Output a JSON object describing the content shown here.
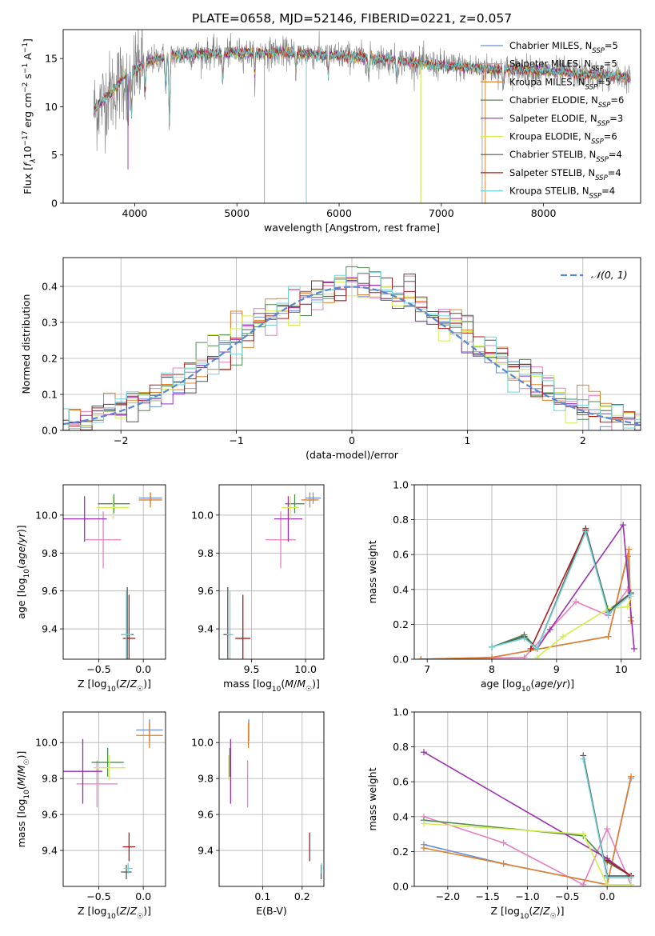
{
  "figure_title": "PLATE=0658, MJD=52146, FIBERID=0221, z=0.057",
  "colors": {
    "Chabrier MILES": "#6a8fd8",
    "Salpeter MILES": "#e77fc0",
    "Kroupa MILES": "#e0802a",
    "Chabrier ELODIE": "#4f8a4f",
    "Salpeter ELODIE": "#9a2fb0",
    "Kroupa ELODIE": "#d3ee4d",
    "Chabrier STELIB": "#555555",
    "Salpeter STELIB": "#b01a1a",
    "Kroupa STELIB": "#6fd3d8"
  },
  "chart_data": [
    {
      "type": "line",
      "id": "spectrum",
      "xlabel": "wavelength [Angstrom, rest frame]",
      "ylabel": "Flux [f_λ10^-17 erg cm^-2 s^-1 A^-1]",
      "xlim": [
        3300,
        8950
      ],
      "ylim": [
        0,
        18
      ],
      "xticks": [
        4000,
        5000,
        6000,
        7000,
        8000
      ],
      "yticks": [
        0,
        5,
        10,
        15
      ],
      "grid": false,
      "legend_position": "upper right",
      "legend": [
        {
          "name": "Chabrier MILES",
          "label": "Chabrier MILES, N_SSP=5"
        },
        {
          "name": "Salpeter MILES",
          "label": "Salpeter MILES, N_SSP=5"
        },
        {
          "name": "Kroupa MILES",
          "label": "Kroupa MILES, N_SSP=5"
        },
        {
          "name": "Chabrier ELODIE",
          "label": "Chabrier ELODIE, N_SSP=6"
        },
        {
          "name": "Salpeter ELODIE",
          "label": "Salpeter ELODIE, N_SSP=3"
        },
        {
          "name": "Kroupa ELODIE",
          "label": "Kroupa ELODIE, N_SSP=6"
        },
        {
          "name": "Chabrier STELIB",
          "label": "Chabrier STELIB, N_SSP=4"
        },
        {
          "name": "Salpeter STELIB",
          "label": "Salpeter STELIB, N_SSP=4"
        },
        {
          "name": "Kroupa STELIB",
          "label": "Kroupa STELIB, N_SSP=4"
        }
      ],
      "observed": {
        "x_range": [
          3600,
          8850
        ],
        "continuum": [
          [
            3600,
            9.6
          ],
          [
            3700,
            10.8
          ],
          [
            3800,
            11.8
          ],
          [
            3900,
            13.2
          ],
          [
            4000,
            13.8
          ],
          [
            4100,
            14.6
          ],
          [
            4300,
            15.2
          ],
          [
            4500,
            15.4
          ],
          [
            5000,
            15.6
          ],
          [
            5500,
            15.6
          ],
          [
            6000,
            15.3
          ],
          [
            6500,
            14.9
          ],
          [
            7000,
            14.3
          ],
          [
            7500,
            13.9
          ],
          [
            8000,
            13.7
          ],
          [
            8500,
            13.3
          ],
          [
            8850,
            13.0
          ]
        ]
      },
      "absorption_features": [
        [
          3934,
          5.5
        ],
        [
          3969,
          4.5
        ],
        [
          4102,
          3.0
        ],
        [
          4304,
          3.5
        ],
        [
          4340,
          7.0
        ],
        [
          4861,
          3.0
        ],
        [
          5175,
          2.0
        ],
        [
          5270,
          15.0
        ],
        [
          5577,
          1.5
        ],
        [
          5680,
          15.5
        ],
        [
          5893,
          2.0
        ],
        [
          6290,
          2.0
        ],
        [
          6563,
          2.0
        ],
        [
          6800,
          14.0
        ],
        [
          7400,
          14.5
        ],
        [
          7605,
          1.5
        ]
      ]
    },
    {
      "type": "histogram",
      "id": "residuals",
      "xlabel": "(data-model)/error",
      "ylabel": "Normed distribution",
      "xlim": [
        -2.5,
        2.5
      ],
      "ylim": [
        0,
        0.48
      ],
      "xticks": [
        -2,
        -1,
        0,
        1,
        2
      ],
      "yticks": [
        0.0,
        0.1,
        0.2,
        0.3,
        0.4
      ],
      "grid": true,
      "bin_width": 0.1,
      "legend": [
        {
          "label": "𝒩(0, 1)",
          "style": "dashed",
          "color": "#5b85d6"
        }
      ]
    },
    {
      "type": "errorbar",
      "id": "age_vs_Z",
      "xlabel": "Z [log10(Z/Z☉)]",
      "ylabel": "age  [log10(age/yr)]",
      "xlim": [
        -0.9,
        0.25
      ],
      "ylim": [
        9.24,
        10.16
      ],
      "xticks": [
        -0.5,
        0.0
      ],
      "yticks": [
        9.4,
        9.6,
        9.8,
        10.0
      ],
      "grid": true,
      "points": [
        {
          "series": "Chabrier MILES",
          "x": 0.08,
          "y": 10.09,
          "xerr": 0.13,
          "yerr": 0.03
        },
        {
          "series": "Salpeter MILES",
          "x": -0.45,
          "y": 9.87,
          "xerr": 0.2,
          "yerr": 0.15
        },
        {
          "series": "Kroupa MILES",
          "x": 0.08,
          "y": 10.08,
          "xerr": 0.13,
          "yerr": 0.04
        },
        {
          "series": "Chabrier ELODIE",
          "x": -0.33,
          "y": 10.06,
          "xerr": 0.18,
          "yerr": 0.05
        },
        {
          "series": "Salpeter ELODIE",
          "x": -0.66,
          "y": 9.98,
          "xerr": 0.25,
          "yerr": 0.12
        },
        {
          "series": "Kroupa ELODIE",
          "x": -0.34,
          "y": 10.04,
          "xerr": 0.18,
          "yerr": 0.06
        },
        {
          "series": "Chabrier STELIB",
          "x": -0.18,
          "y": 9.37,
          "xerr": 0.07,
          "yerr": 0.25
        },
        {
          "series": "Salpeter STELIB",
          "x": -0.16,
          "y": 9.35,
          "xerr": 0.07,
          "yerr": 0.23
        },
        {
          "series": "Kroupa STELIB",
          "x": -0.19,
          "y": 9.37,
          "xerr": 0.06,
          "yerr": 0.23
        }
      ]
    },
    {
      "type": "errorbar",
      "id": "age_vs_mass",
      "xlabel": "mass [log10(M/M☉)]",
      "ylabel": "",
      "xlim": [
        9.2,
        10.17
      ],
      "ylim": [
        9.24,
        10.16
      ],
      "xticks": [
        9.5,
        10.0
      ],
      "yticks": [
        9.4,
        9.6,
        9.8,
        10.0
      ],
      "grid": true,
      "points": [
        {
          "series": "Chabrier MILES",
          "x": 10.07,
          "y": 10.09,
          "xerr": 0.07,
          "yerr": 0.03
        },
        {
          "series": "Salpeter MILES",
          "x": 9.77,
          "y": 9.87,
          "xerr": 0.14,
          "yerr": 0.15
        },
        {
          "series": "Kroupa MILES",
          "x": 10.04,
          "y": 10.08,
          "xerr": 0.08,
          "yerr": 0.04
        },
        {
          "series": "Chabrier ELODIE",
          "x": 9.9,
          "y": 10.06,
          "xerr": 0.09,
          "yerr": 0.05
        },
        {
          "series": "Salpeter ELODIE",
          "x": 9.84,
          "y": 9.98,
          "xerr": 0.13,
          "yerr": 0.12
        },
        {
          "series": "Kroupa ELODIE",
          "x": 9.86,
          "y": 10.04,
          "xerr": 0.08,
          "yerr": 0.06
        },
        {
          "series": "Chabrier STELIB",
          "x": 9.28,
          "y": 9.37,
          "xerr": 0.04,
          "yerr": 0.25
        },
        {
          "series": "Salpeter STELIB",
          "x": 9.42,
          "y": 9.35,
          "xerr": 0.07,
          "yerr": 0.23
        },
        {
          "series": "Kroupa STELIB",
          "x": 9.3,
          "y": 9.37,
          "xerr": 0.03,
          "yerr": 0.23
        }
      ]
    },
    {
      "type": "line",
      "id": "weight_vs_age",
      "xlabel": "age  [log10(age/yr)]",
      "ylabel": "mass weight",
      "xlim": [
        6.8,
        10.3
      ],
      "ylim": [
        0,
        1.0
      ],
      "xticks": [
        7,
        8,
        9,
        10
      ],
      "yticks": [
        0.0,
        0.2,
        0.4,
        0.6,
        0.8,
        1.0
      ],
      "grid": true,
      "series": [
        {
          "name": "Chabrier MILES",
          "x": [
            6.9,
            8.0,
            9.8,
            10.1,
            10.15
          ],
          "y": [
            0.0,
            0.01,
            0.13,
            0.59,
            0.24
          ]
        },
        {
          "name": "Salpeter MILES",
          "x": [
            6.9,
            8.5,
            9.3,
            9.8,
            10.1
          ],
          "y": [
            0.0,
            0.01,
            0.33,
            0.25,
            0.4
          ]
        },
        {
          "name": "Kroupa MILES",
          "x": [
            6.9,
            8.0,
            9.8,
            10.12,
            10.15
          ],
          "y": [
            0.0,
            0.01,
            0.13,
            0.63,
            0.22
          ]
        },
        {
          "name": "Chabrier ELODIE",
          "x": [
            8.0,
            8.5,
            8.7,
            9.45,
            9.8,
            10.15
          ],
          "y": [
            0.07,
            0.14,
            0.06,
            0.74,
            0.28,
            0.38
          ]
        },
        {
          "name": "Salpeter ELODIE",
          "x": [
            8.7,
            8.9,
            10.03,
            10.2
          ],
          "y": [
            0.06,
            0.17,
            0.77,
            0.06
          ]
        },
        {
          "name": "Kroupa ELODIE",
          "x": [
            8.7,
            9.1,
            9.8,
            10.1,
            10.15
          ],
          "y": [
            0.01,
            0.13,
            0.29,
            0.3,
            0.36
          ]
        },
        {
          "name": "Chabrier STELIB",
          "x": [
            8.0,
            8.5,
            8.7,
            9.45,
            9.8,
            10.15
          ],
          "y": [
            0.07,
            0.13,
            0.06,
            0.75,
            0.27,
            0.38
          ]
        },
        {
          "name": "Salpeter STELIB",
          "x": [
            8.6,
            9.45
          ],
          "y": [
            0.06,
            0.74
          ]
        },
        {
          "name": "Kroupa STELIB",
          "x": [
            8.0,
            8.5,
            8.7,
            9.45,
            9.8,
            10.15
          ],
          "y": [
            0.07,
            0.12,
            0.06,
            0.73,
            0.26,
            0.37
          ]
        }
      ]
    },
    {
      "type": "errorbar",
      "id": "mass_vs_Z",
      "xlabel": "Z [log10(Z/Z☉)]",
      "ylabel": "mass [log10(M/M☉)]",
      "xlim": [
        -0.9,
        0.25
      ],
      "ylim": [
        9.2,
        10.17
      ],
      "xticks": [
        -0.5,
        0.0
      ],
      "yticks": [
        9.4,
        9.6,
        9.8,
        10.0
      ],
      "grid": true,
      "points": [
        {
          "series": "Chabrier MILES",
          "x": 0.07,
          "y": 10.07,
          "xerr": 0.15,
          "yerr": 0.06
        },
        {
          "series": "Salpeter MILES",
          "x": -0.52,
          "y": 9.77,
          "xerr": 0.23,
          "yerr": 0.13
        },
        {
          "series": "Kroupa MILES",
          "x": 0.07,
          "y": 10.04,
          "xerr": 0.15,
          "yerr": 0.07
        },
        {
          "series": "Chabrier ELODIE",
          "x": -0.4,
          "y": 9.89,
          "xerr": 0.18,
          "yerr": 0.08
        },
        {
          "series": "Salpeter ELODIE",
          "x": -0.68,
          "y": 9.84,
          "xerr": 0.22,
          "yerr": 0.18
        },
        {
          "series": "Kroupa ELODIE",
          "x": -0.38,
          "y": 9.86,
          "xerr": 0.18,
          "yerr": 0.07
        },
        {
          "series": "Chabrier STELIB",
          "x": -0.19,
          "y": 9.28,
          "xerr": 0.06,
          "yerr": 0.04
        },
        {
          "series": "Salpeter STELIB",
          "x": -0.16,
          "y": 9.42,
          "xerr": 0.07,
          "yerr": 0.08
        },
        {
          "series": "Kroupa STELIB",
          "x": -0.17,
          "y": 9.3,
          "xerr": 0.05,
          "yerr": 0.03
        }
      ]
    },
    {
      "type": "errorbar",
      "id": "mass_vs_ebv",
      "xlabel": "E(B-V)",
      "ylabel": "",
      "xlim": [
        -0.01,
        0.255
      ],
      "ylim": [
        9.2,
        10.17
      ],
      "xticks": [
        0.1,
        0.2
      ],
      "yticks": [
        9.4,
        9.6,
        9.8,
        10.0
      ],
      "grid": true,
      "points": [
        {
          "series": "Chabrier MILES",
          "x": 0.065,
          "y": 10.07,
          "xerr": 0.0,
          "yerr": 0.06
        },
        {
          "series": "Salpeter MILES",
          "x": 0.062,
          "y": 9.77,
          "xerr": 0.0,
          "yerr": 0.13
        },
        {
          "series": "Kroupa MILES",
          "x": 0.064,
          "y": 10.04,
          "xerr": 0.0,
          "yerr": 0.07
        },
        {
          "series": "Chabrier ELODIE",
          "x": 0.017,
          "y": 9.89,
          "xerr": 0.0,
          "yerr": 0.08
        },
        {
          "series": "Salpeter ELODIE",
          "x": 0.019,
          "y": 9.84,
          "xerr": 0.0,
          "yerr": 0.18
        },
        {
          "series": "Kroupa ELODIE",
          "x": 0.014,
          "y": 9.86,
          "xerr": 0.0,
          "yerr": 0.07
        },
        {
          "series": "Chabrier STELIB",
          "x": 0.248,
          "y": 9.28,
          "xerr": 0.0,
          "yerr": 0.04
        },
        {
          "series": "Salpeter STELIB",
          "x": 0.219,
          "y": 9.42,
          "xerr": 0.0,
          "yerr": 0.08
        },
        {
          "series": "Kroupa STELIB",
          "x": 0.249,
          "y": 9.3,
          "xerr": 0.0,
          "yerr": 0.03
        }
      ]
    },
    {
      "type": "line",
      "id": "weight_vs_Z",
      "xlabel": "Z [log10(Z/Z☉)]",
      "ylabel": "mass weight",
      "xlim": [
        -2.42,
        0.42
      ],
      "ylim": [
        0,
        1.0
      ],
      "xticks": [
        -2.0,
        -1.5,
        -1.0,
        -0.5,
        0.0
      ],
      "yticks": [
        0.0,
        0.2,
        0.4,
        0.6,
        0.8,
        1.0
      ],
      "grid": true,
      "series": [
        {
          "name": "Chabrier MILES",
          "x": [
            -2.3,
            -1.3,
            0.0,
            0.3
          ],
          "y": [
            0.24,
            0.13,
            0.01,
            0.62
          ]
        },
        {
          "name": "Salpeter MILES",
          "x": [
            -2.3,
            -1.3,
            -0.3,
            0.0,
            0.3
          ],
          "y": [
            0.4,
            0.25,
            0.01,
            0.33,
            0.01
          ]
        },
        {
          "name": "Kroupa MILES",
          "x": [
            -2.3,
            -1.3,
            0.0,
            0.3
          ],
          "y": [
            0.22,
            0.13,
            0.01,
            0.63
          ]
        },
        {
          "name": "Chabrier ELODIE",
          "x": [
            -2.3,
            -0.3,
            0.0,
            0.3
          ],
          "y": [
            0.38,
            0.29,
            0.14,
            0.06
          ]
        },
        {
          "name": "Salpeter ELODIE",
          "x": [
            -2.3,
            0.0,
            0.3
          ],
          "y": [
            0.77,
            0.16,
            0.06
          ]
        },
        {
          "name": "Kroupa ELODIE",
          "x": [
            -2.3,
            -0.3,
            0.0,
            0.3
          ],
          "y": [
            0.36,
            0.3,
            0.01,
            0.01
          ]
        },
        {
          "name": "Chabrier STELIB",
          "x": [
            -0.3,
            0.0,
            0.3
          ],
          "y": [
            0.75,
            0.06,
            0.06
          ]
        },
        {
          "name": "Salpeter STELIB",
          "x": [
            0.0,
            0.3
          ],
          "y": [
            0.15,
            0.06
          ]
        },
        {
          "name": "Kroupa STELIB",
          "x": [
            -0.3,
            0.0,
            0.3
          ],
          "y": [
            0.73,
            0.05,
            0.05
          ]
        }
      ]
    }
  ]
}
